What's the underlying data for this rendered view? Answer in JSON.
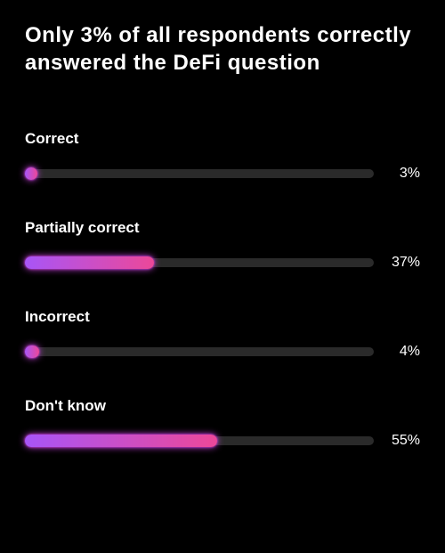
{
  "chart": {
    "type": "bar-horizontal",
    "title": "Only 3% of all respondents correctly answered the DeFi question",
    "title_fontsize": 24,
    "title_font_weight": 700,
    "background_color": "#000000",
    "text_color": "#ffffff",
    "label_fontsize": 17,
    "label_font_weight": 700,
    "value_fontsize": 16,
    "track_color": "#2a2a2a",
    "track_height": 10,
    "fill_height": 14,
    "fill_gradient_from": "#a855f7",
    "fill_gradient_to": "#ec4899",
    "fill_glow_color": "#d946ef",
    "bar_track_width_pct": 92,
    "max_value": 100,
    "bars": [
      {
        "label": "Correct",
        "value": 3,
        "value_text": "3%"
      },
      {
        "label": "Partially correct",
        "value": 37,
        "value_text": "37%"
      },
      {
        "label": "Incorrect",
        "value": 4,
        "value_text": "4%"
      },
      {
        "label": "Don't know",
        "value": 55,
        "value_text": "55%"
      }
    ]
  }
}
